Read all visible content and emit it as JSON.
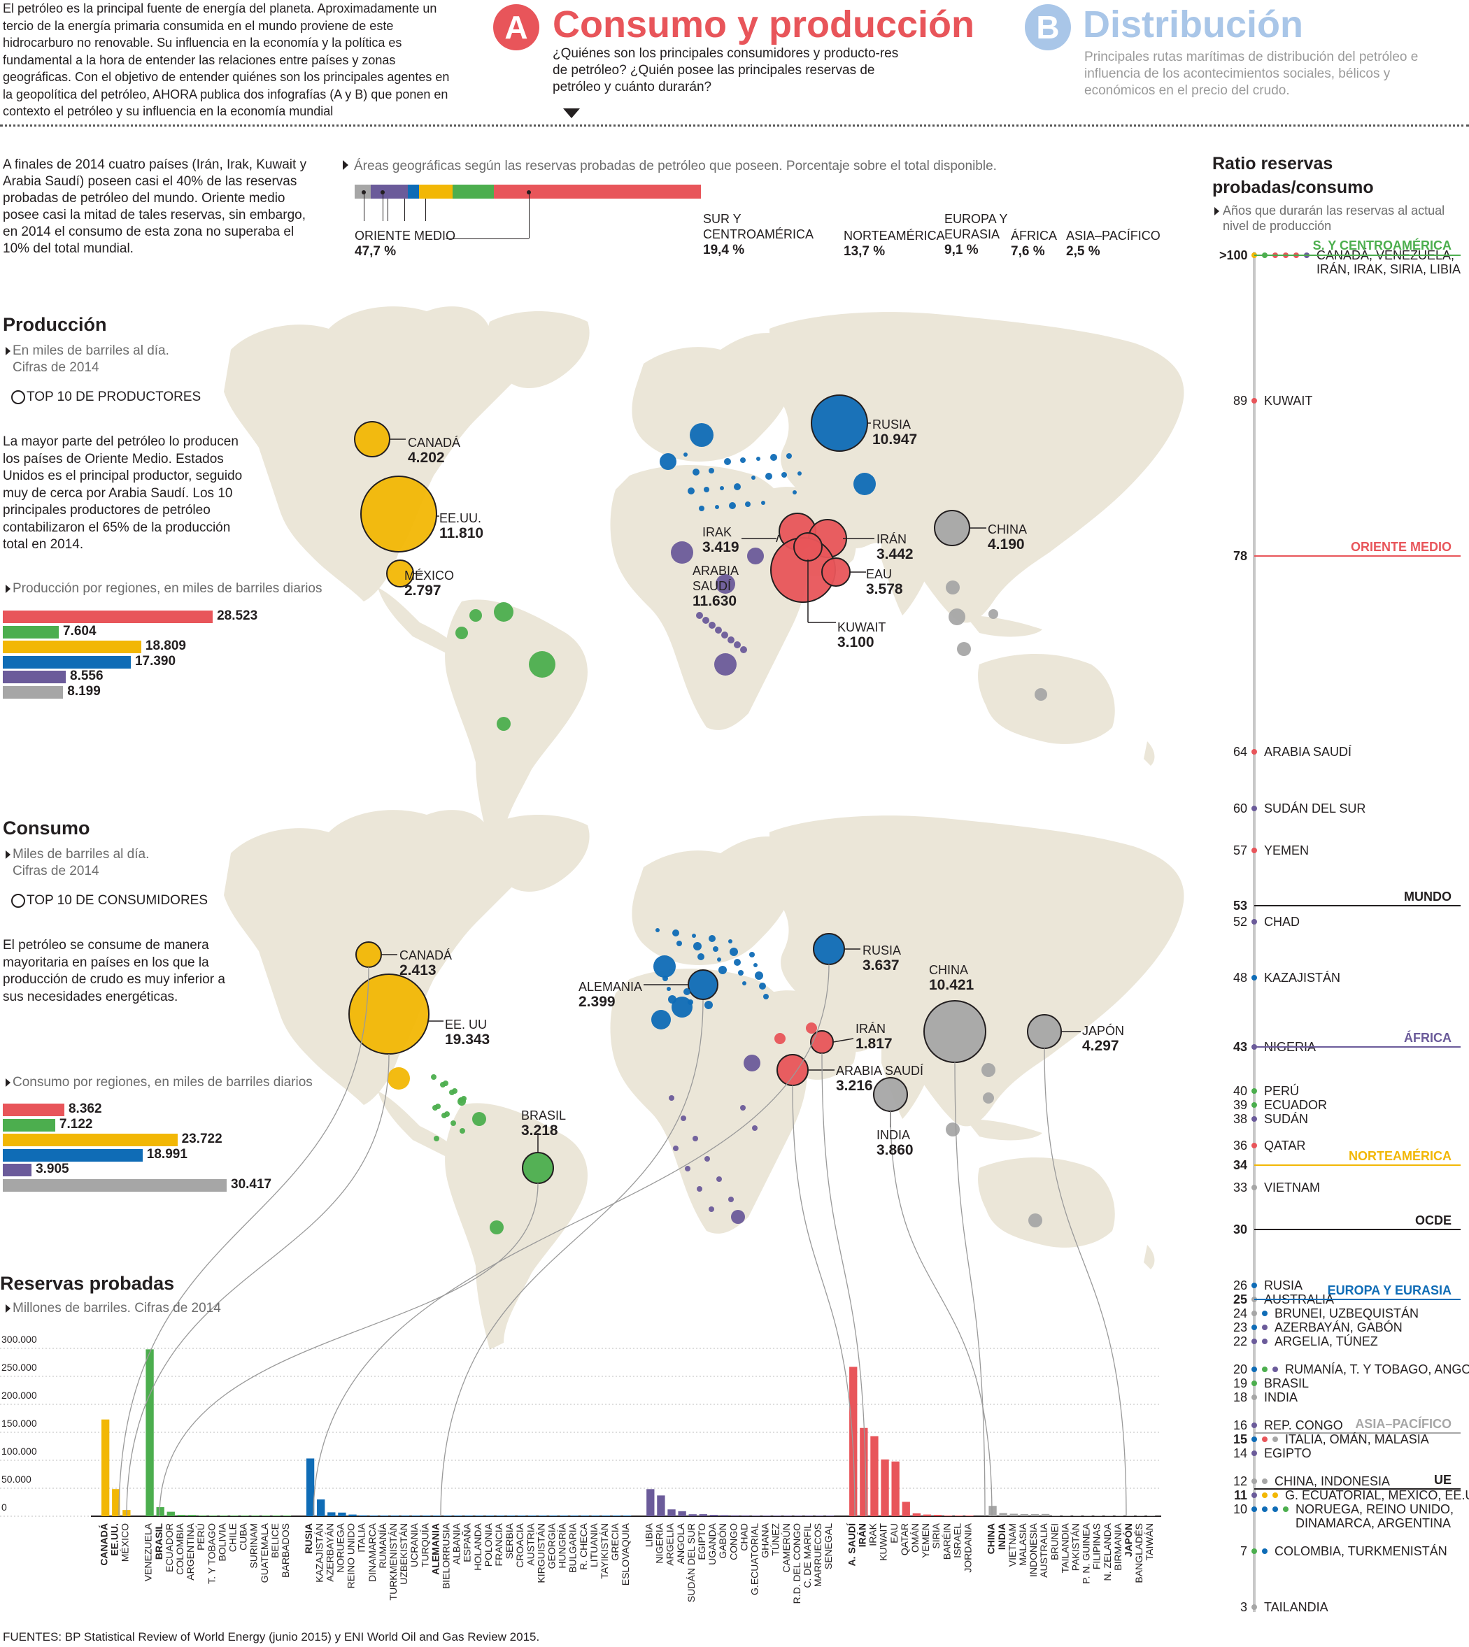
{
  "intro": "El petróleo es la principal fuente de energía del planeta. Aproximadamente un tercio de la energía primaria consumida en el mundo proviene de este hidrocarburo no renovable. Su influencia en la economía y la política es fundamental a la hora de entender las relaciones entre países y zonas geográficas. Con el objetivo de entender quiénes son los principales agentes en la geopolítica del petróleo, AHORA publica dos infografías (A y B) que ponen en contexto el petróleo y su influencia en la economía mundial",
  "section_a": {
    "letter": "A",
    "title": "Consumo y producción",
    "text": "¿Quiénes son los principales consumidores y producto-res de petróleo? ¿Quién posee las principales reservas de petróleo y cuánto durarán?"
  },
  "section_b": {
    "letter": "B",
    "title": "Distribución",
    "text": "Principales rutas marítimas de distribución del petróleo e influencia de los acontecimientos sociales, bélicos y económicos en el precio del crudo."
  },
  "reserves_intro": "A finales de 2014 cuatro países (Irán, Irak, Kuwait y Arabia Saudí) poseen casi el 40% de las reservas probadas de petróleo del mundo. Oriente medio posee casi la mitad de tales reservas, sin embargo, en 2014 el consumo de esta zona no superaba el 10% del total mundial.",
  "areas_caption": "Áreas geográficas según las reservas probadas de petróleo que poseen. Porcentaje sobre el total disponible.",
  "colors": {
    "oriente": "#e8555a",
    "sur": "#4cae4e",
    "norte": "#f2b705",
    "europa": "#0f6cb6",
    "africa": "#6b5b9a",
    "asia": "#a6a6a6"
  },
  "areas": [
    {
      "name": "ORIENTE MEDIO",
      "pct": "47,7 %",
      "value": 47.7,
      "color": "#e8555a"
    },
    {
      "name": "SUR Y CENTROAMÉRICA",
      "pct": "19,4 %",
      "value": 19.4,
      "color": "#4cae4e"
    },
    {
      "name": "NORTEAMÉRICA",
      "pct": "13,7 %",
      "value": 13.7,
      "color": "#f2b705"
    },
    {
      "name": "EUROPA Y EURASIA",
      "pct": "9,1 %",
      "value": 9.1,
      "color": "#0f6cb6"
    },
    {
      "name": "ÁFRICA",
      "pct": "7,6 %",
      "value": 7.6,
      "color": "#6b5b9a"
    },
    {
      "name": "ASIA–PACÍFICO",
      "pct": "2,5 %",
      "value": 2.5,
      "color": "#a6a6a6"
    }
  ],
  "produccion": {
    "title": "Producción",
    "sub1": "En miles de barriles al día.",
    "sub2": "Cifras de 2014",
    "top": "TOP 10 DE PRODUCTORES",
    "text": "La mayor parte del petróleo lo producen los países de Oriente Medio. Estados Unidos es el principal productor, seguido muy de cerca por Arabia Saudí. Los 10 principales productores de petróleo contabilizaron el 65% de la producción total en 2014.",
    "regions_caption": "Producción por regiones, en miles de barriles diarios",
    "regions": [
      {
        "value": 28523,
        "label": "28.523",
        "color": "#e8555a"
      },
      {
        "value": 7604,
        "label": "7.604",
        "color": "#4cae4e"
      },
      {
        "value": 18809,
        "label": "18.809",
        "color": "#f2b705"
      },
      {
        "value": 17390,
        "label": "17.390",
        "color": "#0f6cb6"
      },
      {
        "value": 8556,
        "label": "8.556",
        "color": "#6b5b9a"
      },
      {
        "value": 8199,
        "label": "8.199",
        "color": "#a6a6a6"
      }
    ],
    "labels": {
      "canada": {
        "n": "CANADÁ",
        "v": "4.202"
      },
      "eeuu": {
        "n": "EE.UU.",
        "v": "11.810"
      },
      "mexico": {
        "n": "MÉXICO",
        "v": "2.797"
      },
      "rusia": {
        "n": "RUSIA",
        "v": "10.947"
      },
      "china": {
        "n": "CHINA",
        "v": "4.190"
      },
      "irak": {
        "n": "IRAK",
        "v": "3.419"
      },
      "iran": {
        "n": "IRÁN",
        "v": "3.442"
      },
      "arabia": {
        "n1": "ARABIA",
        "n2": "SAUDÍ",
        "v": "11.630"
      },
      "eau": {
        "n": "EAU",
        "v": "3.578"
      },
      "kuwait": {
        "n": "KUWAIT",
        "v": "3.100"
      }
    }
  },
  "consumo": {
    "title": "Consumo",
    "sub1": "Miles de barriles al día.",
    "sub2": "Cifras de 2014",
    "top": "TOP 10 DE CONSUMIDORES",
    "text": "El petróleo se consume de manera mayoritaria en países en los que la producción de crudo es muy inferior a sus necesidades energéticas.",
    "regions_caption": "Consumo por regiones, en miles de barriles diarios",
    "regions": [
      {
        "value": 8362,
        "label": "8.362",
        "color": "#e8555a"
      },
      {
        "value": 7122,
        "label": "7.122",
        "color": "#4cae4e"
      },
      {
        "value": 23722,
        "label": "23.722",
        "color": "#f2b705"
      },
      {
        "value": 18991,
        "label": "18.991",
        "color": "#0f6cb6"
      },
      {
        "value": 3905,
        "label": "3.905",
        "color": "#6b5b9a"
      },
      {
        "value": 30417,
        "label": "30.417",
        "color": "#a6a6a6"
      }
    ],
    "labels": {
      "canada": {
        "n": "CANADÁ",
        "v": "2.413"
      },
      "eeuu": {
        "n": "EE. UU",
        "v": "19.343"
      },
      "rusia": {
        "n": "RUSIA",
        "v": "3.637"
      },
      "alemania": {
        "n": "ALEMANIA",
        "v": "2.399"
      },
      "china": {
        "n": "CHINA",
        "v": "10.421"
      },
      "japon": {
        "n": "JAPÓN",
        "v": "4.297"
      },
      "iran": {
        "n": "IRÁN",
        "v": "1.817"
      },
      "arabia": {
        "n": "ARABIA SAUDÍ",
        "v": "3.216"
      },
      "india": {
        "n": "INDIA",
        "v": "3.860"
      },
      "brasil": {
        "n": "BRASIL",
        "v": "3.218"
      }
    }
  },
  "reservas": {
    "title": "Reservas probadas",
    "sub": "Millones de barriles. Cifras de 2014",
    "ticks": [
      "300.000",
      "250.000",
      "200.000",
      "150.000",
      "100.000",
      "50.000",
      "0"
    ]
  },
  "chart_data": {
    "type": "bar",
    "title": "Reservas probadas",
    "ylabel": "Millones de barriles. Cifras de 2014",
    "ylim": [
      0,
      300000
    ],
    "bars": [
      {
        "c": "CANADÁ",
        "v": 172900,
        "col": "#f2b705",
        "b": true
      },
      {
        "c": "EE.UU.",
        "v": 48500,
        "col": "#f2b705",
        "b": true
      },
      {
        "c": "MÉXICO",
        "v": 11100,
        "col": "#f2b705"
      },
      {
        "gap": true
      },
      {
        "c": "VENEZUELA",
        "v": 298300,
        "col": "#4cae4e"
      },
      {
        "c": "BRASIL",
        "v": 16200,
        "col": "#4cae4e",
        "b": true
      },
      {
        "c": "ECUADOR",
        "v": 8000,
        "col": "#4cae4e"
      },
      {
        "c": "COLOMBIA",
        "v": 2400,
        "col": "#4cae4e"
      },
      {
        "c": "ARGENTINA",
        "v": 2300,
        "col": "#4cae4e"
      },
      {
        "c": "PERÚ",
        "v": 1400,
        "col": "#4cae4e"
      },
      {
        "c": "T. Y TOBAGO",
        "v": 800,
        "col": "#4cae4e"
      },
      {
        "c": "BOLIVIA",
        "v": 200,
        "col": "#4cae4e"
      },
      {
        "c": "CHILE",
        "v": 150,
        "col": "#4cae4e"
      },
      {
        "c": "CUBA",
        "v": 120,
        "col": "#4cae4e"
      },
      {
        "c": "SURINAM",
        "v": 100,
        "col": "#4cae4e"
      },
      {
        "c": "GUATEMALA",
        "v": 80,
        "col": "#4cae4e"
      },
      {
        "c": "BELICE",
        "v": 60,
        "col": "#4cae4e"
      },
      {
        "c": "BARBADOS",
        "v": 50,
        "col": "#4cae4e"
      },
      {
        "gap": true
      },
      {
        "c": "RUSIA",
        "v": 103200,
        "col": "#0f6cb6",
        "b": true
      },
      {
        "c": "KAZAJISTÁN",
        "v": 30000,
        "col": "#0f6cb6"
      },
      {
        "c": "AZERBAYÁN",
        "v": 7000,
        "col": "#0f6cb6"
      },
      {
        "c": "NORUEGA",
        "v": 6500,
        "col": "#0f6cb6"
      },
      {
        "c": "REINO UNIDO",
        "v": 3000,
        "col": "#0f6cb6"
      },
      {
        "c": "ITALIA",
        "v": 1500,
        "col": "#0f6cb6"
      },
      {
        "c": "DINAMARCA",
        "v": 700,
        "col": "#0f6cb6"
      },
      {
        "c": "RUMANÍA",
        "v": 600,
        "col": "#0f6cb6"
      },
      {
        "c": "TURKMENISTÁN",
        "v": 600,
        "col": "#0f6cb6"
      },
      {
        "c": "UZBEKISTÁN",
        "v": 600,
        "col": "#0f6cb6"
      },
      {
        "c": "UCRANIA",
        "v": 400,
        "col": "#0f6cb6"
      },
      {
        "c": "TURQUÍA",
        "v": 300,
        "col": "#0f6cb6"
      },
      {
        "c": "ALEMANIA",
        "v": 200,
        "col": "#0f6cb6",
        "b": true
      },
      {
        "c": "BIELORRUSIA",
        "v": 200,
        "col": "#0f6cb6"
      },
      {
        "c": "ALBANIA",
        "v": 200,
        "col": "#0f6cb6"
      },
      {
        "c": "ESPAÑA",
        "v": 150,
        "col": "#0f6cb6"
      },
      {
        "c": "HOLANDA",
        "v": 150,
        "col": "#0f6cb6"
      },
      {
        "c": "POLONIA",
        "v": 150,
        "col": "#0f6cb6"
      },
      {
        "c": "FRANCIA",
        "v": 100,
        "col": "#0f6cb6"
      },
      {
        "c": "SERBIA",
        "v": 80,
        "col": "#0f6cb6"
      },
      {
        "c": "CROACIA",
        "v": 70,
        "col": "#0f6cb6"
      },
      {
        "c": "AUSTRIA",
        "v": 60,
        "col": "#0f6cb6"
      },
      {
        "c": "KIRGUISTÁN",
        "v": 50,
        "col": "#0f6cb6"
      },
      {
        "c": "GEORGIA",
        "v": 40,
        "col": "#0f6cb6"
      },
      {
        "c": "HUNGRÍA",
        "v": 30,
        "col": "#0f6cb6"
      },
      {
        "c": "BULGARIA",
        "v": 20,
        "col": "#0f6cb6"
      },
      {
        "c": "R. CHECA",
        "v": 20,
        "col": "#0f6cb6"
      },
      {
        "c": "LITUANIA",
        "v": 10,
        "col": "#0f6cb6"
      },
      {
        "c": "TAYIKISTÁN",
        "v": 10,
        "col": "#0f6cb6"
      },
      {
        "c": "GRECIA",
        "v": 10,
        "col": "#0f6cb6"
      },
      {
        "c": "ESLOVAQUIA",
        "v": 10,
        "col": "#0f6cb6"
      },
      {
        "gap": true
      },
      {
        "c": "LIBIA",
        "v": 48400,
        "col": "#6b5b9a"
      },
      {
        "c": "NIGERIA",
        "v": 37100,
        "col": "#6b5b9a"
      },
      {
        "c": "ARGELIA",
        "v": 12200,
        "col": "#6b5b9a"
      },
      {
        "c": "ANGOLA",
        "v": 9000,
        "col": "#6b5b9a"
      },
      {
        "c": "SUDÁN DEL SUR",
        "v": 3500,
        "col": "#6b5b9a"
      },
      {
        "c": "EGIPTO",
        "v": 3600,
        "col": "#6b5b9a"
      },
      {
        "c": "UGANDA",
        "v": 2500,
        "col": "#6b5b9a"
      },
      {
        "c": "GABÓN",
        "v": 2000,
        "col": "#6b5b9a"
      },
      {
        "c": "CONGO",
        "v": 1600,
        "col": "#6b5b9a"
      },
      {
        "c": "CHAD",
        "v": 1500,
        "col": "#6b5b9a"
      },
      {
        "c": "G.ECUATORIAL",
        "v": 1100,
        "col": "#6b5b9a"
      },
      {
        "c": "GHANA",
        "v": 700,
        "col": "#6b5b9a"
      },
      {
        "c": "TÚNEZ",
        "v": 400,
        "col": "#6b5b9a"
      },
      {
        "c": "CAMERÚN",
        "v": 200,
        "col": "#6b5b9a"
      },
      {
        "c": "R.D. DEL CONGO",
        "v": 200,
        "col": "#6b5b9a"
      },
      {
        "c": "C. DE MARFIL",
        "v": 100,
        "col": "#6b5b9a"
      },
      {
        "c": "MARRUECOS",
        "v": 50,
        "col": "#6b5b9a"
      },
      {
        "c": "SENEGAL",
        "v": 30,
        "col": "#6b5b9a"
      },
      {
        "gap": true
      },
      {
        "c": "A. SAUDÍ",
        "v": 267000,
        "col": "#e8555a",
        "b": true
      },
      {
        "c": "IRÁN",
        "v": 157800,
        "col": "#e8555a",
        "b": true
      },
      {
        "c": "IRAK",
        "v": 143100,
        "col": "#e8555a"
      },
      {
        "c": "KUWAIT",
        "v": 101500,
        "col": "#e8555a"
      },
      {
        "c": "EAU",
        "v": 97800,
        "col": "#e8555a"
      },
      {
        "c": "QATAR",
        "v": 25700,
        "col": "#e8555a"
      },
      {
        "c": "OMÁN",
        "v": 5200,
        "col": "#e8555a"
      },
      {
        "c": "YEMEN",
        "v": 3000,
        "col": "#e8555a"
      },
      {
        "c": "SIRIA",
        "v": 2500,
        "col": "#e8555a"
      },
      {
        "c": "BARÉIN",
        "v": 200,
        "col": "#e8555a"
      },
      {
        "c": "ISRAEL",
        "v": 20,
        "col": "#e8555a"
      },
      {
        "c": "JORDANIA",
        "v": 10,
        "col": "#e8555a"
      },
      {
        "gap": true
      },
      {
        "c": "CHINA",
        "v": 18500,
        "col": "#a6a6a6",
        "b": true
      },
      {
        "c": "INDIA",
        "v": 5700,
        "col": "#a6a6a6",
        "b": true
      },
      {
        "c": "VIETNAM",
        "v": 4400,
        "col": "#a6a6a6"
      },
      {
        "c": "MALASIA",
        "v": 3800,
        "col": "#a6a6a6"
      },
      {
        "c": "INDONESIA",
        "v": 3700,
        "col": "#a6a6a6"
      },
      {
        "c": "AUSTRALIA",
        "v": 4000,
        "col": "#a6a6a6"
      },
      {
        "c": "BRUNEI",
        "v": 1100,
        "col": "#a6a6a6"
      },
      {
        "c": "TAILANDIA",
        "v": 400,
        "col": "#a6a6a6"
      },
      {
        "c": "PAKISTÁN",
        "v": 300,
        "col": "#a6a6a6"
      },
      {
        "c": "P. N. GUINEA",
        "v": 200,
        "col": "#a6a6a6"
      },
      {
        "c": "FILIPINAS",
        "v": 140,
        "col": "#a6a6a6"
      },
      {
        "c": "N. ZELANDA",
        "v": 100,
        "col": "#a6a6a6"
      },
      {
        "c": "BIRMANIA",
        "v": 50,
        "col": "#a6a6a6"
      },
      {
        "c": "JAPÓN",
        "v": 44,
        "col": "#a6a6a6",
        "b": true
      },
      {
        "c": "BANGLADÉS",
        "v": 30,
        "col": "#a6a6a6"
      },
      {
        "c": "TAIWÁN",
        "v": 2,
        "col": "#a6a6a6"
      }
    ]
  },
  "ratio": {
    "title1": "Ratio reservas",
    "title2": "probadas/consumo",
    "sub": "Años que durarán las reservas al actual nivel de producción",
    "rows": [
      {
        "y": ">100",
        "t": "CANADÁ, VENEZUELA,",
        "t2": "IRÁN, IRAK, SIRIA, LIBIA",
        "dots": [
          "#f2b705",
          "#4cae4e",
          "#e8555a",
          "#e8555a",
          "#e8555a",
          "#6b5b9a"
        ],
        "bold": true,
        "band": "S. Y CENTROAMÉRICA",
        "bandColor": "#4cae4e"
      },
      {
        "y": "89",
        "t": "KUWAIT",
        "dots": [
          "#e8555a"
        ]
      },
      {
        "y": "78",
        "t": "",
        "dots": [],
        "bold": true,
        "band": "ORIENTE MEDIO",
        "bandColor": "#e8555a"
      },
      {
        "y": "64",
        "t": "ARABIA SAUDÍ",
        "dots": [
          "#e8555a"
        ]
      },
      {
        "y": "60",
        "t": "SUDÁN DEL SUR",
        "dots": [
          "#6b5b9a"
        ]
      },
      {
        "y": "57",
        "t": "YEMEN",
        "dots": [
          "#e8555a"
        ]
      },
      {
        "y": "53",
        "t": "",
        "dots": [],
        "bold": true,
        "band": "MUNDO",
        "bandColor": "#231f20"
      },
      {
        "y": "52",
        "t": "CHAD",
        "dots": [
          "#6b5b9a"
        ]
      },
      {
        "y": "48",
        "t": "KAZAJISTÁN",
        "dots": [
          "#0f6cb6"
        ]
      },
      {
        "y": "43",
        "t": "NIGERIA",
        "dots": [
          "#6b5b9a"
        ],
        "bold": true,
        "band": "ÁFRICA",
        "bandColor": "#6b5b9a"
      },
      {
        "y": "40",
        "t": "PERÚ",
        "dots": [
          "#4cae4e"
        ]
      },
      {
        "y": "39",
        "t": "ECUADOR",
        "dots": [
          "#4cae4e"
        ]
      },
      {
        "y": "38",
        "t": "SUDÁN",
        "dots": [
          "#6b5b9a"
        ]
      },
      {
        "y": "36",
        "t": "QATAR",
        "dots": [
          "#e8555a"
        ]
      },
      {
        "y": "34",
        "t": "",
        "dots": [],
        "bold": true,
        "band": "NORTEAMÉRICA",
        "bandColor": "#f2b705"
      },
      {
        "y": "33",
        "t": "VIETNAM",
        "dots": [
          "#a6a6a6"
        ]
      },
      {
        "y": "30",
        "t": "",
        "dots": [],
        "bold": true,
        "band": "OCDE",
        "bandColor": "#231f20"
      },
      {
        "y": "26",
        "t": "RUSIA",
        "dots": [
          "#0f6cb6"
        ]
      },
      {
        "y": "25",
        "t": "AUSTRALIA",
        "dots": [
          "#a6a6a6"
        ],
        "bold": true,
        "band": "EUROPA Y EURASIA",
        "bandColor": "#0f6cb6"
      },
      {
        "y": "24",
        "t": "BRUNEI, UZBEQUISTÁN",
        "dots": [
          "#a6a6a6",
          "#0f6cb6"
        ]
      },
      {
        "y": "23",
        "t": "AZERBAYÁN, GABÓN",
        "dots": [
          "#0f6cb6",
          "#6b5b9a"
        ]
      },
      {
        "y": "22",
        "t": "ARGELIA, TÚNEZ",
        "dots": [
          "#6b5b9a",
          "#6b5b9a"
        ]
      },
      {
        "y": "20",
        "t": "RUMANÍA, T. Y TOBAGO, ANGOLA",
        "dots": [
          "#0f6cb6",
          "#4cae4e",
          "#6b5b9a"
        ]
      },
      {
        "y": "19",
        "t": "BRASIL",
        "dots": [
          "#4cae4e"
        ]
      },
      {
        "y": "18",
        "t": "INDIA",
        "dots": [
          "#a6a6a6"
        ]
      },
      {
        "y": "16",
        "t": "REP. CONGO",
        "dots": [
          "#6b5b9a"
        ],
        "band2": "ASIA–PACÍFICO",
        "band2Color": "#a6a6a6"
      },
      {
        "y": "15",
        "t": "ITALIA, OMÁN, MALASIA",
        "dots": [
          "#0f6cb6",
          "#e8555a",
          "#a6a6a6"
        ],
        "bold": true
      },
      {
        "y": "14",
        "t": "EGIPTO",
        "dots": [
          "#6b5b9a"
        ]
      },
      {
        "y": "12",
        "t": "CHINA, INDONESIA",
        "dots": [
          "#a6a6a6",
          "#a6a6a6"
        ],
        "band2": "UE",
        "band2Color": "#231f20"
      },
      {
        "y": "11",
        "t": "G. ECUATORIAL, MÉXICO, EE.UU.",
        "dots": [
          "#6b5b9a",
          "#f2b705",
          "#f2b705"
        ],
        "bold": true
      },
      {
        "y": "10",
        "t": "NORUEGA, REINO UNIDO,",
        "t2": "DINAMARCA, ARGENTINA",
        "dots": [
          "#0f6cb6",
          "#0f6cb6",
          "#0f6cb6",
          "#4cae4e"
        ]
      },
      {
        "y": "7",
        "t": "COLOMBIA, TURKMENISTÁN",
        "dots": [
          "#4cae4e",
          "#0f6cb6"
        ]
      },
      {
        "y": "3",
        "t": "TAILANDIA",
        "dots": [
          "#a6a6a6"
        ]
      }
    ]
  },
  "sources": "FUENTES: BP Statistical Review of World Energy (junio 2015) y ENI World Oil and Gas Review 2015."
}
